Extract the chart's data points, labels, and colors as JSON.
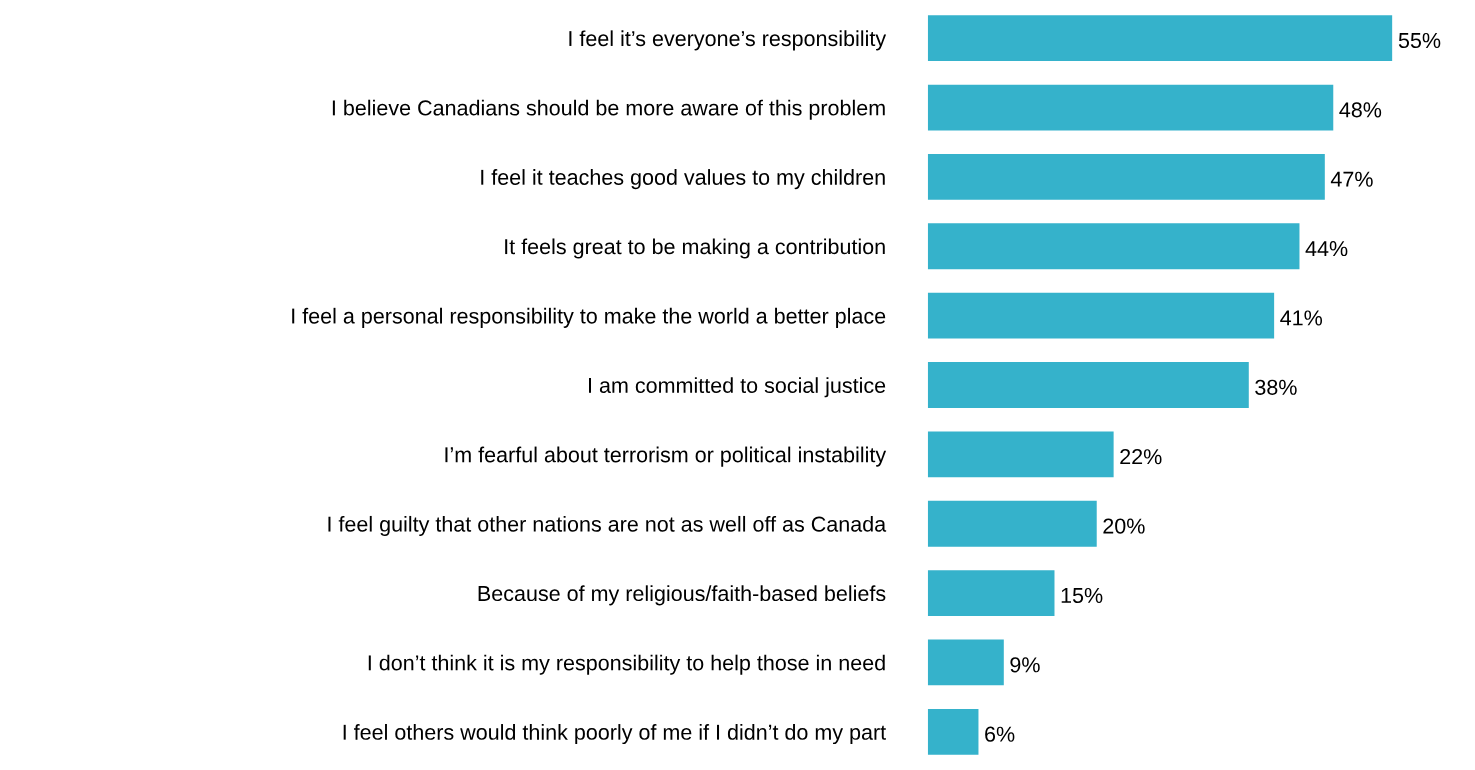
{
  "chart_data": {
    "type": "bar",
    "orientation": "horizontal",
    "categories": [
      "I feel it’s everyone’s responsibility",
      "I believe Canadians should be more aware of this problem",
      "I feel it teaches good values to my children",
      "It feels great to be making a contribution",
      "I feel a personal responsibility to make the world a better place",
      "I am committed to social justice",
      "I’m fearful about terrorism or political instability",
      "I feel guilty that other nations are not as well off as Canada",
      "Because of my religious/faith-based beliefs",
      "I don’t think it is my responsibility to help those in need",
      "I feel others would think poorly of me if I didn’t do my part"
    ],
    "values": [
      55,
      48,
      47,
      44,
      41,
      38,
      22,
      20,
      15,
      9,
      6
    ],
    "value_labels": [
      "55%",
      "48%",
      "47%",
      "44%",
      "41%",
      "38%",
      "22%",
      "20%",
      "15%",
      "9%",
      "6%"
    ],
    "color": "#35b2cb",
    "tick_labels": "y"
  }
}
